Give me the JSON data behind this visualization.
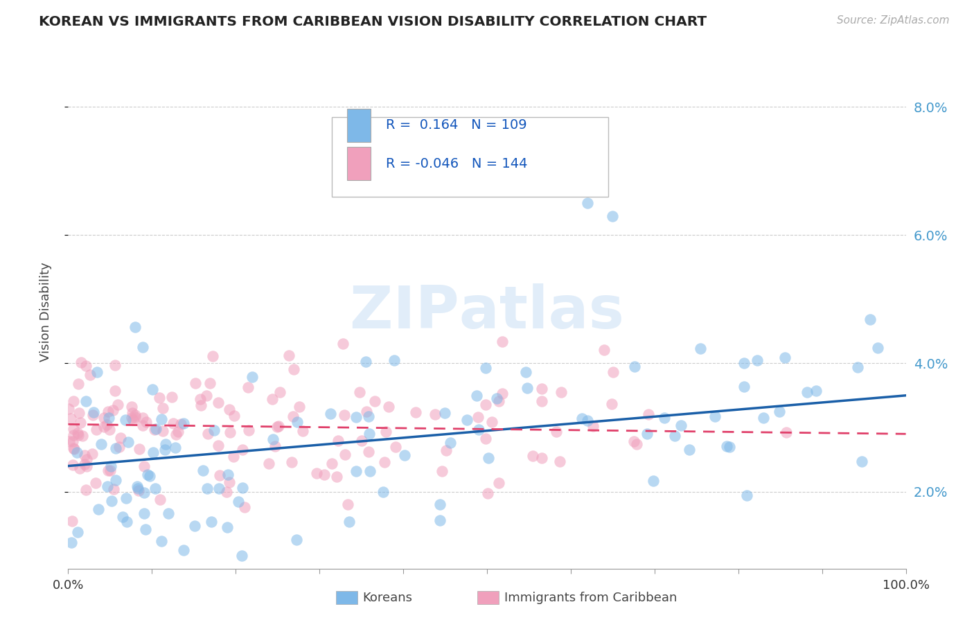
{
  "title": "KOREAN VS IMMIGRANTS FROM CARIBBEAN VISION DISABILITY CORRELATION CHART",
  "source": "Source: ZipAtlas.com",
  "ylabel": "Vision Disability",
  "xlim": [
    0,
    100
  ],
  "ylim": [
    0.8,
    8.8
  ],
  "yticks": [
    2.0,
    4.0,
    6.0,
    8.0
  ],
  "ytick_labels": [
    "2.0%",
    "4.0%",
    "6.0%",
    "8.0%"
  ],
  "koreans_color": "#7EB8E8",
  "caribbean_color": "#F0A0BC",
  "trendline_korean_color": "#1A5FA8",
  "trendline_caribbean_color": "#E0406A",
  "watermark": "ZIPatlas",
  "background_color": "#ffffff",
  "grid_color": "#cccccc",
  "koreans_r": 0.164,
  "koreans_n": 109,
  "caribbean_r": -0.046,
  "caribbean_n": 144,
  "legend_r1_val": "0.164",
  "legend_r2_val": "-0.046",
  "legend_n1": "109",
  "legend_n2": "144"
}
